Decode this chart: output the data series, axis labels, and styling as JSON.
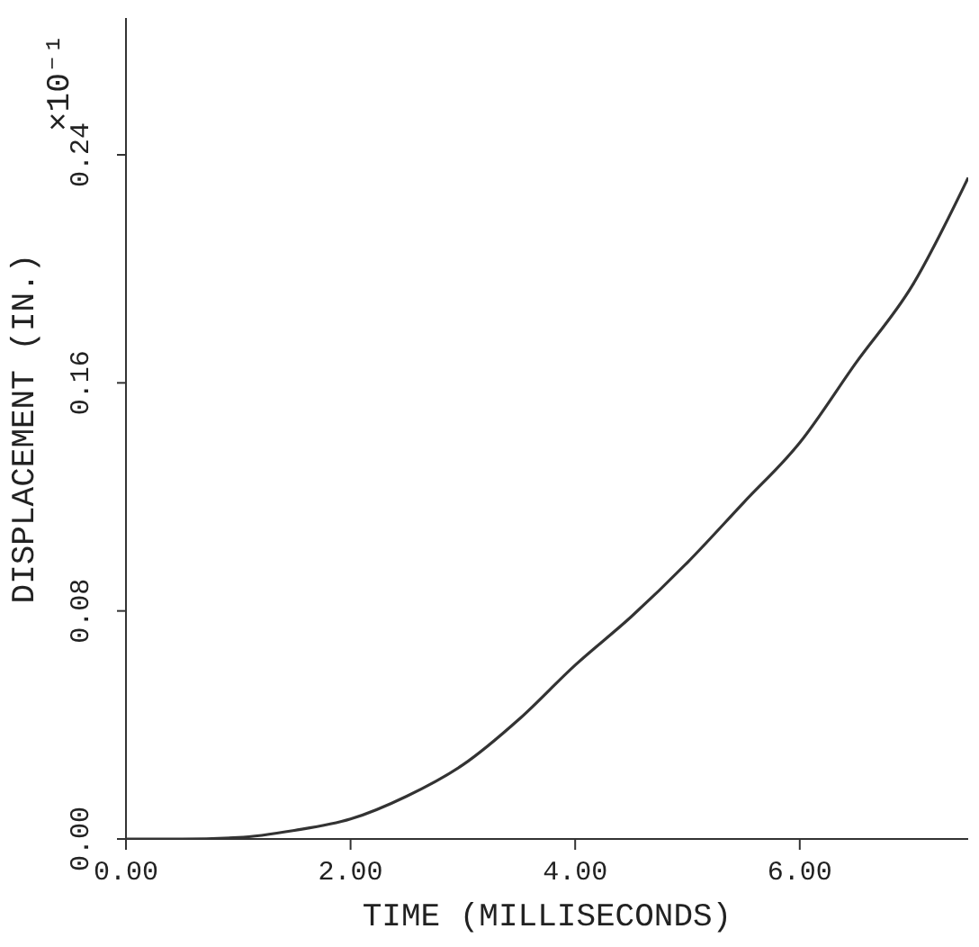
{
  "chart_data": {
    "type": "line",
    "xlabel": "TIME (MILLISECONDS)",
    "ylabel": "DISPLACEMENT  (IN.)",
    "annotations": [
      "×10⁻¹"
    ],
    "xlim": [
      0,
      7.5
    ],
    "xticks": [
      {
        "value": 0,
        "label": "0.00"
      },
      {
        "value": 2,
        "label": "2.00"
      },
      {
        "value": 4,
        "label": "4.00"
      },
      {
        "value": 6,
        "label": "6.00"
      }
    ],
    "ylim": [
      0,
      0.288
    ],
    "yticks": [
      {
        "value": 0,
        "label": "0.00"
      },
      {
        "value": 0.08,
        "label": "0.08"
      },
      {
        "value": 0.16,
        "label": "0.16"
      },
      {
        "value": 0.24,
        "label": "0.24"
      }
    ],
    "grid": false,
    "marker": "none",
    "line_style": "solid",
    "series": [
      {
        "color": "#333333",
        "x": [
          0,
          0.5,
          1,
          1.5,
          2,
          2.5,
          3,
          3.5,
          4,
          4.5,
          5,
          5.5,
          6,
          6.5,
          7,
          7.5
        ],
        "values": [
          0,
          0,
          0.0005,
          0.003,
          0.007,
          0.015,
          0.026,
          0.042,
          0.061,
          0.078,
          0.097,
          0.118,
          0.139,
          0.167,
          0.194,
          0.232
        ]
      }
    ]
  }
}
